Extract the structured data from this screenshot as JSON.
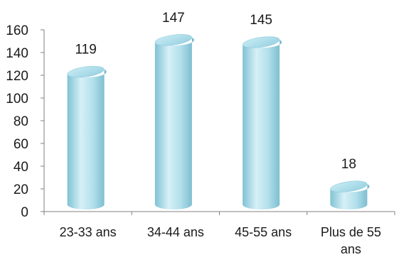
{
  "chart_data": {
    "type": "bar",
    "categories": [
      "23-33 ans",
      "34-44 ans",
      "45-55 ans",
      "Plus de 55 ans"
    ],
    "category_label_lines": [
      [
        "23-33 ans"
      ],
      [
        "34-44 ans"
      ],
      [
        "45-55 ans"
      ],
      [
        "Plus de 55",
        "ans"
      ]
    ],
    "values": [
      119,
      147,
      145,
      18
    ],
    "value_labels": [
      "119",
      "147",
      "145",
      "18"
    ],
    "yticks": [
      "0",
      "20",
      "40",
      "60",
      "80",
      "100",
      "120",
      "140",
      "160"
    ],
    "ylim": [
      0,
      160
    ],
    "title": "",
    "xlabel": "",
    "ylabel": "",
    "grid": false,
    "legend": "none",
    "bar_style": "cylinder",
    "colors": {
      "bar_light": "#d9f1f7",
      "bar_mid": "#a9dbe8",
      "bar_dark": "#6fb5c8",
      "axis": "#808080"
    }
  }
}
